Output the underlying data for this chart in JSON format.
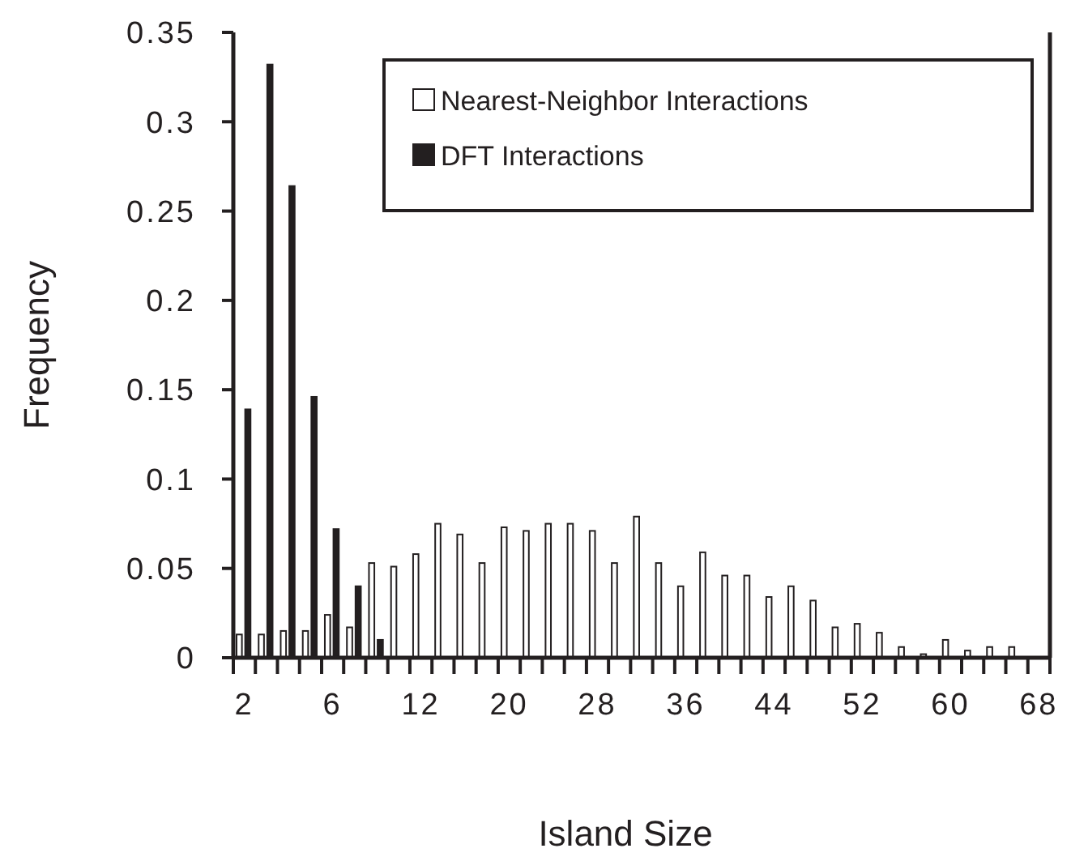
{
  "chart_data": {
    "type": "bar",
    "xlabel": "Island Size",
    "ylabel": "Frequency",
    "categories": [
      "2",
      null,
      null,
      null,
      "6",
      null,
      null,
      null,
      "12",
      null,
      null,
      null,
      "20",
      null,
      null,
      null,
      "28",
      null,
      null,
      null,
      "36",
      null,
      null,
      null,
      "44",
      null,
      null,
      null,
      "52",
      null,
      null,
      null,
      "60",
      null,
      null,
      null,
      "68"
    ],
    "series": [
      {
        "name": "Nearest-Neighbor Interactions",
        "color": "#ffffff",
        "values": [
          0.013,
          0.013,
          0.015,
          0.015,
          0.024,
          0.017,
          0.053,
          0.051,
          0.058,
          0.075,
          0.069,
          0.053,
          0.073,
          0.071,
          0.075,
          0.075,
          0.071,
          0.053,
          0.079,
          0.053,
          0.04,
          0.059,
          0.046,
          0.046,
          0.034,
          0.04,
          0.032,
          0.017,
          0.019,
          0.014,
          0.006,
          0.002,
          0.01,
          0.004,
          0.006,
          0.006,
          null
        ]
      },
      {
        "name": "DFT Interactions",
        "color": "#231f20",
        "values": [
          0.139,
          0.332,
          0.264,
          0.146,
          0.072,
          0.04,
          0.01,
          null,
          null,
          null,
          null,
          null,
          null,
          null,
          null,
          null,
          null,
          null,
          null,
          null,
          null,
          null,
          null,
          null,
          null,
          null,
          null,
          null,
          null,
          null,
          null,
          null,
          null,
          null,
          null,
          null,
          null
        ]
      }
    ],
    "ylim": [
      0,
      0.35
    ],
    "yticks": [
      0,
      0.05,
      0.1,
      0.15,
      0.2,
      0.25,
      0.3,
      0.35
    ],
    "grid": false,
    "legend": "top right"
  }
}
